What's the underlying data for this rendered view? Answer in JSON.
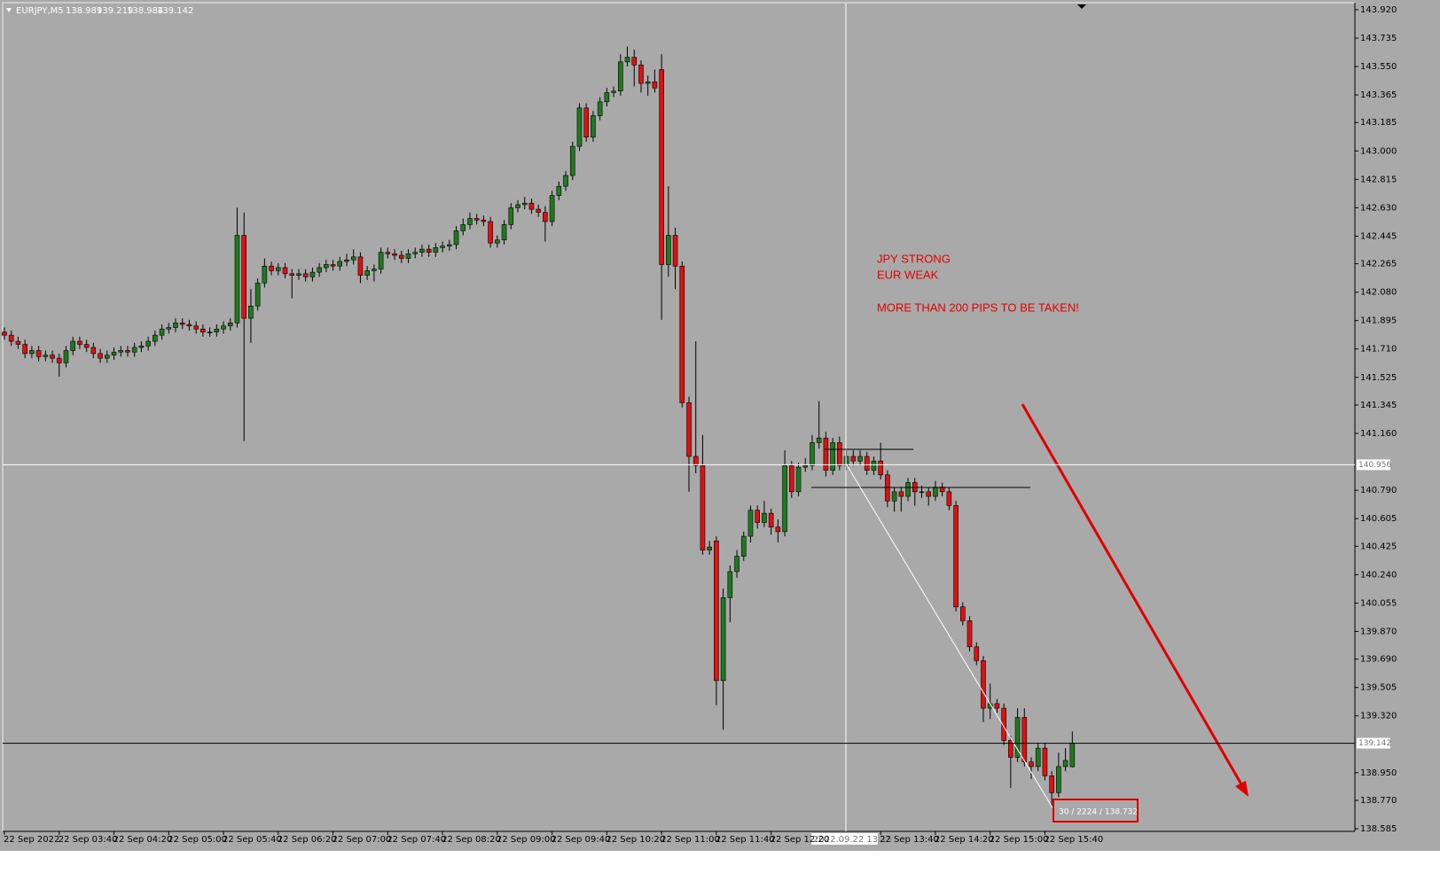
{
  "chart_data": {
    "type": "candlestick",
    "symbol": "EURJPY,M5",
    "annotations": [
      "JPY STRONG",
      "EUR WEAK",
      "MORE THAN 200 PIPS TO BE TAKEN!"
    ],
    "crosshair": {
      "time": "2022.09.22 13:15",
      "price": 140.956
    },
    "ruler_label": "30 / 2224 / 138.732",
    "bull_color": "#1f7a1f",
    "bear_color": "#e01010",
    "ylim": [
      138.568,
      143.96
    ],
    "yticks": [
      {
        "value": 143.92,
        "label": "143.920"
      },
      {
        "value": 143.735,
        "label": "143.735"
      },
      {
        "value": 143.55,
        "label": "143.550"
      },
      {
        "value": 143.365,
        "label": "143.365"
      },
      {
        "value": 143.185,
        "label": "143.185"
      },
      {
        "value": 143.0,
        "label": "143.000"
      },
      {
        "value": 142.815,
        "label": "142.815"
      },
      {
        "value": 142.63,
        "label": "142.630"
      },
      {
        "value": 142.445,
        "label": "142.445"
      },
      {
        "value": 142.265,
        "label": "142.265"
      },
      {
        "value": 142.08,
        "label": "142.080"
      },
      {
        "value": 141.895,
        "label": "141.895"
      },
      {
        "value": 141.71,
        "label": "141.710"
      },
      {
        "value": 141.525,
        "label": "141.525"
      },
      {
        "value": 141.345,
        "label": "141.345"
      },
      {
        "value": 141.16,
        "label": "141.160"
      },
      {
        "value": 140.79,
        "label": "140.790"
      },
      {
        "value": 140.605,
        "label": "140.605"
      },
      {
        "value": 140.425,
        "label": "140.425"
      },
      {
        "value": 140.24,
        "label": "140.240"
      },
      {
        "value": 140.055,
        "label": "140.055"
      },
      {
        "value": 139.87,
        "label": "139.870"
      },
      {
        "value": 139.69,
        "label": "139.690"
      },
      {
        "value": 139.505,
        "label": "139.505"
      },
      {
        "value": 139.32,
        "label": "139.320"
      },
      {
        "value": 138.95,
        "label": "138.950"
      },
      {
        "value": 138.77,
        "label": "138.770"
      },
      {
        "value": 138.585,
        "label": "138.585"
      }
    ],
    "categories": [
      "22 Sep 2022",
      null,
      null,
      null,
      null,
      null,
      null,
      null,
      "22 Sep 03:40",
      null,
      null,
      null,
      null,
      null,
      null,
      null,
      "22 Sep 04:20",
      null,
      null,
      null,
      null,
      null,
      null,
      null,
      "22 Sep 05:00",
      null,
      null,
      null,
      null,
      null,
      null,
      null,
      "22 Sep 05:40",
      null,
      null,
      null,
      null,
      null,
      null,
      null,
      "22 Sep 06:20",
      null,
      null,
      null,
      null,
      null,
      null,
      null,
      "22 Sep 07:00",
      null,
      null,
      null,
      null,
      null,
      null,
      null,
      "22 Sep 07:40",
      null,
      null,
      null,
      null,
      null,
      null,
      null,
      "22 Sep 08:20",
      null,
      null,
      null,
      null,
      null,
      null,
      null,
      "22 Sep 09:00",
      null,
      null,
      null,
      null,
      null,
      null,
      null,
      "22 Sep 09:40",
      null,
      null,
      null,
      null,
      null,
      null,
      null,
      "22 Sep 10:20",
      null,
      null,
      null,
      null,
      null,
      null,
      null,
      "22 Sep 11:00",
      null,
      null,
      null,
      null,
      null,
      null,
      null,
      "22 Sep 11:40",
      null,
      null,
      null,
      null,
      null,
      null,
      null,
      "22 Sep 12:20",
      null,
      null,
      null,
      null,
      null,
      null,
      null,
      null,
      null,
      null,
      null,
      null,
      null,
      null,
      null,
      "22 Sep 13:40",
      null,
      null,
      null,
      null,
      null,
      null,
      null,
      "22 Sep 14:20",
      null,
      null,
      null,
      null,
      null,
      null,
      null,
      "22 Sep 15:00",
      null,
      null,
      null,
      null,
      null,
      null,
      null,
      "22 Sep 15:40",
      null,
      null,
      null,
      null
    ],
    "open": [
      141.82,
      141.8,
      141.76,
      141.74,
      141.68,
      141.7,
      141.66,
      141.67,
      141.65,
      141.62,
      141.7,
      141.76,
      141.74,
      141.72,
      141.68,
      141.65,
      141.67,
      141.69,
      141.7,
      141.69,
      141.72,
      141.73,
      141.76,
      141.8,
      141.84,
      141.85,
      141.88,
      141.87,
      141.86,
      141.84,
      141.82,
      141.82,
      141.84,
      141.86,
      141.88,
      142.45,
      141.91,
      141.99,
      142.14,
      142.25,
      142.22,
      142.24,
      142.2,
      142.19,
      142.2,
      142.18,
      142.21,
      142.24,
      142.26,
      142.25,
      142.28,
      142.29,
      142.31,
      142.19,
      142.22,
      142.23,
      142.34,
      142.33,
      142.32,
      142.3,
      142.33,
      142.34,
      142.36,
      142.34,
      142.37,
      142.38,
      142.39,
      142.48,
      142.52,
      142.56,
      142.55,
      142.54,
      142.4,
      142.42,
      142.52,
      142.63,
      142.65,
      142.66,
      142.62,
      142.6,
      142.54,
      142.71,
      142.77,
      142.84,
      143.03,
      143.28,
      143.09,
      143.23,
      143.32,
      143.38,
      143.39,
      143.58,
      143.61,
      143.56,
      143.44,
      143.45,
      143.53,
      142.26,
      142.45,
      142.25,
      141.36,
      141.01,
      140.95,
      140.4,
      140.46,
      139.55,
      140.09,
      140.26,
      140.36,
      140.49,
      140.66,
      140.58,
      140.64,
      140.55,
      140.52,
      140.95,
      140.78,
      140.94,
      140.95,
      141.1,
      141.13,
      140.92,
      141.1,
      140.95,
      141.01,
      140.98,
      141.01,
      140.92,
      140.98,
      140.89,
      140.72,
      140.78,
      140.75,
      140.84,
      140.78,
      140.78,
      140.75,
      140.81,
      140.78,
      140.69,
      140.03,
      139.94,
      139.77,
      139.68,
      139.37,
      139.4,
      139.37,
      139.16,
      139.05,
      139.31,
      139.02,
      138.99,
      139.11,
      138.93,
      138.82,
      138.99,
      138.989
    ],
    "high": [
      141.85,
      141.83,
      141.79,
      141.77,
      141.73,
      141.73,
      141.7,
      141.7,
      141.68,
      141.73,
      141.79,
      141.79,
      141.77,
      141.75,
      141.71,
      141.7,
      141.72,
      141.73,
      141.73,
      141.75,
      141.76,
      141.79,
      141.83,
      141.87,
      141.88,
      141.91,
      141.91,
      141.9,
      141.89,
      141.87,
      141.85,
      141.87,
      141.89,
      141.91,
      142.63,
      142.6,
      142.1,
      142.17,
      142.3,
      142.28,
      142.27,
      142.27,
      142.23,
      142.23,
      142.23,
      142.24,
      142.27,
      142.29,
      142.29,
      142.31,
      142.33,
      142.36,
      142.34,
      142.25,
      142.26,
      142.37,
      142.37,
      142.36,
      142.35,
      142.36,
      142.37,
      142.39,
      142.39,
      142.4,
      142.41,
      142.42,
      142.51,
      142.56,
      142.6,
      142.59,
      142.58,
      142.57,
      142.45,
      142.55,
      142.66,
      142.68,
      142.7,
      142.69,
      142.65,
      142.64,
      142.74,
      142.8,
      142.87,
      143.06,
      143.31,
      143.31,
      143.26,
      143.35,
      143.41,
      143.42,
      143.63,
      143.68,
      143.66,
      143.59,
      143.49,
      143.53,
      143.63,
      142.77,
      142.5,
      142.28,
      141.4,
      141.76,
      141.15,
      140.46,
      140.49,
      140.15,
      140.3,
      140.4,
      140.52,
      140.69,
      140.69,
      140.72,
      140.67,
      140.6,
      141.05,
      140.98,
      140.97,
      141.0,
      141.15,
      141.37,
      141.17,
      141.13,
      141.14,
      141.05,
      141.05,
      141.05,
      141.04,
      141.01,
      141.1,
      140.92,
      140.81,
      140.81,
      140.87,
      140.87,
      140.82,
      140.81,
      140.85,
      140.84,
      140.81,
      140.72,
      140.06,
      139.97,
      139.8,
      139.71,
      139.53,
      139.43,
      139.4,
      139.19,
      139.37,
      139.37,
      139.05,
      139.14,
      139.14,
      138.96,
      139.08,
      139.11,
      139.219
    ],
    "low": [
      141.77,
      141.73,
      141.71,
      141.65,
      141.65,
      141.63,
      141.63,
      141.62,
      141.53,
      141.59,
      141.67,
      141.71,
      141.69,
      141.65,
      141.62,
      141.62,
      141.64,
      141.66,
      141.66,
      141.66,
      141.69,
      141.7,
      141.73,
      141.77,
      141.81,
      141.82,
      141.84,
      141.83,
      141.81,
      141.79,
      141.79,
      141.79,
      141.81,
      141.83,
      141.85,
      141.11,
      141.75,
      141.96,
      142.11,
      142.19,
      142.19,
      142.17,
      142.04,
      142.16,
      142.15,
      142.15,
      142.18,
      142.21,
      142.22,
      142.22,
      142.25,
      142.26,
      142.14,
      142.16,
      142.15,
      142.2,
      142.3,
      142.29,
      142.27,
      142.27,
      142.3,
      142.31,
      142.31,
      142.31,
      142.34,
      142.35,
      142.36,
      142.45,
      142.49,
      142.52,
      142.51,
      142.37,
      142.37,
      142.39,
      142.49,
      142.6,
      142.62,
      142.59,
      142.57,
      142.41,
      142.51,
      142.68,
      142.74,
      142.81,
      143.0,
      143.06,
      143.06,
      143.2,
      143.29,
      143.35,
      143.36,
      143.55,
      143.42,
      143.38,
      143.36,
      143.38,
      141.9,
      142.18,
      142.1,
      141.33,
      140.78,
      140.9,
      140.37,
      140.37,
      139.39,
      139.23,
      139.93,
      140.22,
      140.33,
      140.45,
      140.54,
      140.55,
      140.5,
      140.45,
      140.49,
      140.74,
      140.75,
      140.91,
      140.92,
      141.06,
      140.88,
      140.89,
      140.92,
      140.92,
      140.95,
      140.95,
      140.89,
      140.89,
      140.86,
      140.68,
      140.65,
      140.65,
      140.72,
      140.69,
      140.74,
      140.69,
      140.72,
      140.75,
      140.66,
      140.0,
      139.91,
      139.74,
      139.65,
      139.28,
      139.3,
      139.34,
      139.13,
      138.85,
      139.02,
      138.99,
      138.91,
      138.96,
      138.9,
      138.73,
      138.79,
      138.96,
      138.984
    ],
    "close": [
      141.8,
      141.76,
      141.74,
      141.68,
      141.7,
      141.66,
      141.67,
      141.65,
      141.62,
      141.7,
      141.76,
      141.74,
      141.72,
      141.68,
      141.65,
      141.67,
      141.69,
      141.7,
      141.69,
      141.72,
      141.73,
      141.76,
      141.8,
      141.84,
      141.85,
      141.88,
      141.87,
      141.86,
      141.84,
      141.82,
      141.82,
      141.84,
      141.86,
      141.88,
      142.45,
      141.91,
      141.99,
      142.14,
      142.25,
      142.22,
      142.24,
      142.2,
      142.19,
      142.2,
      142.18,
      142.21,
      142.24,
      142.26,
      142.25,
      142.28,
      142.29,
      142.31,
      142.19,
      142.22,
      142.23,
      142.34,
      142.33,
      142.32,
      142.3,
      142.33,
      142.34,
      142.36,
      142.34,
      142.37,
      142.38,
      142.39,
      142.48,
      142.52,
      142.56,
      142.55,
      142.54,
      142.4,
      142.42,
      142.52,
      142.63,
      142.65,
      142.66,
      142.62,
      142.6,
      142.54,
      142.71,
      142.77,
      142.84,
      143.03,
      143.28,
      143.09,
      143.23,
      143.32,
      143.38,
      143.39,
      143.58,
      143.61,
      143.56,
      143.44,
      143.45,
      143.41,
      142.26,
      142.45,
      142.25,
      141.36,
      141.01,
      140.95,
      140.4,
      140.42,
      139.55,
      140.09,
      140.26,
      140.36,
      140.49,
      140.66,
      140.58,
      140.64,
      140.55,
      140.52,
      140.95,
      140.78,
      140.94,
      140.95,
      141.1,
      141.13,
      140.92,
      141.1,
      140.95,
      141.01,
      140.98,
      141.01,
      140.92,
      140.98,
      140.89,
      140.72,
      140.78,
      140.75,
      140.84,
      140.78,
      140.78,
      140.75,
      140.81,
      140.78,
      140.69,
      140.03,
      139.94,
      139.77,
      139.68,
      139.37,
      139.4,
      139.37,
      139.16,
      139.05,
      139.31,
      139.02,
      138.99,
      139.11,
      138.93,
      138.82,
      138.99,
      139.03,
      139.142
    ]
  }
}
